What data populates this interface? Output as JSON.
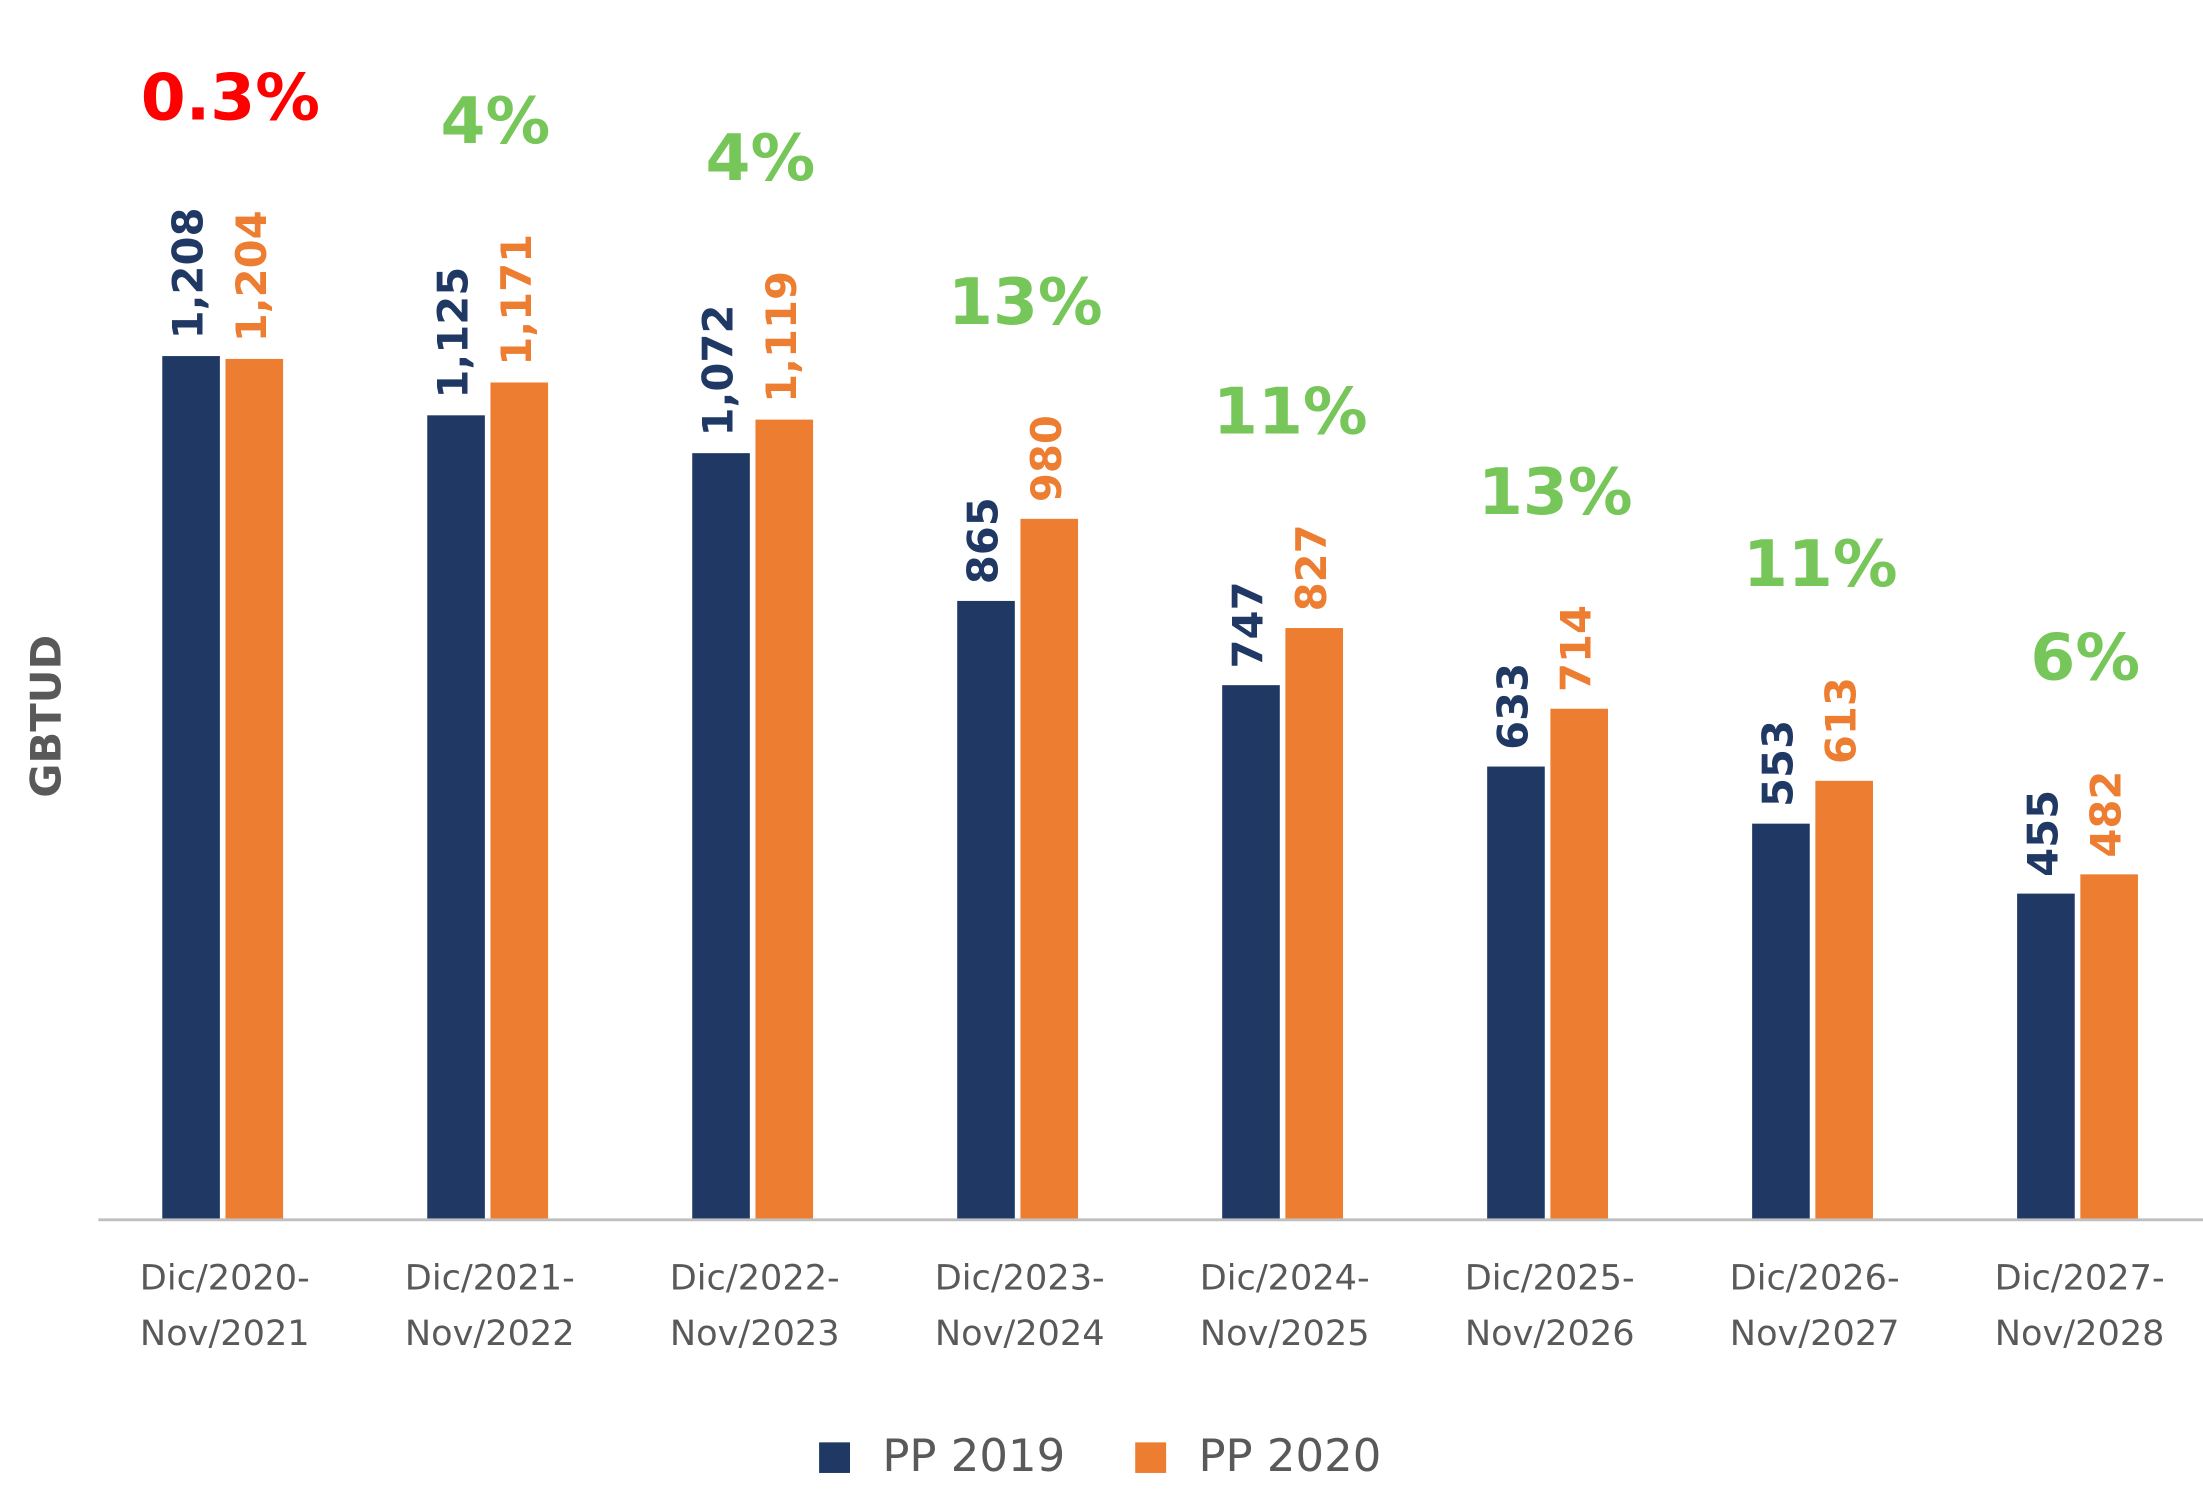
{
  "chart_data": {
    "type": "bar",
    "y_label": "GBTUD",
    "categories": [
      "Dic/2020-Nov/2021",
      "Dic/2021-Nov/2022",
      "Dic/2022-Nov/2023",
      "Dic/2023-Nov/2024",
      "Dic/2024-Nov/2025",
      "Dic/2025-Nov/2026",
      "Dic/2026-Nov/2027",
      "Dic/2027-Nov/2028"
    ],
    "series": [
      {
        "name": "PP 2019",
        "color": "#203864",
        "values": [
          1208,
          1125,
          1072,
          865,
          747,
          633,
          553,
          455
        ],
        "value_labels": [
          "1,208",
          "1,125",
          "1,072",
          "865",
          "747",
          "633",
          "553",
          "455"
        ]
      },
      {
        "name": "PP 2020",
        "color": "#ed7d31",
        "values": [
          1204,
          1171,
          1119,
          980,
          827,
          714,
          613,
          482
        ],
        "value_labels": [
          "1,204",
          "1,171",
          "1,119",
          "980",
          "827",
          "714",
          "613",
          "482"
        ]
      }
    ],
    "annotations": [
      "0.3%",
      "4%",
      "4%",
      "13%",
      "11%",
      "13%",
      "11%",
      "6%"
    ],
    "annotation_colors": [
      "#ff0000",
      "#77c65a",
      "#77c65a",
      "#77c65a",
      "#77c65a",
      "#77c65a",
      "#77c65a",
      "#77c65a"
    ],
    "legend": "bottom"
  }
}
